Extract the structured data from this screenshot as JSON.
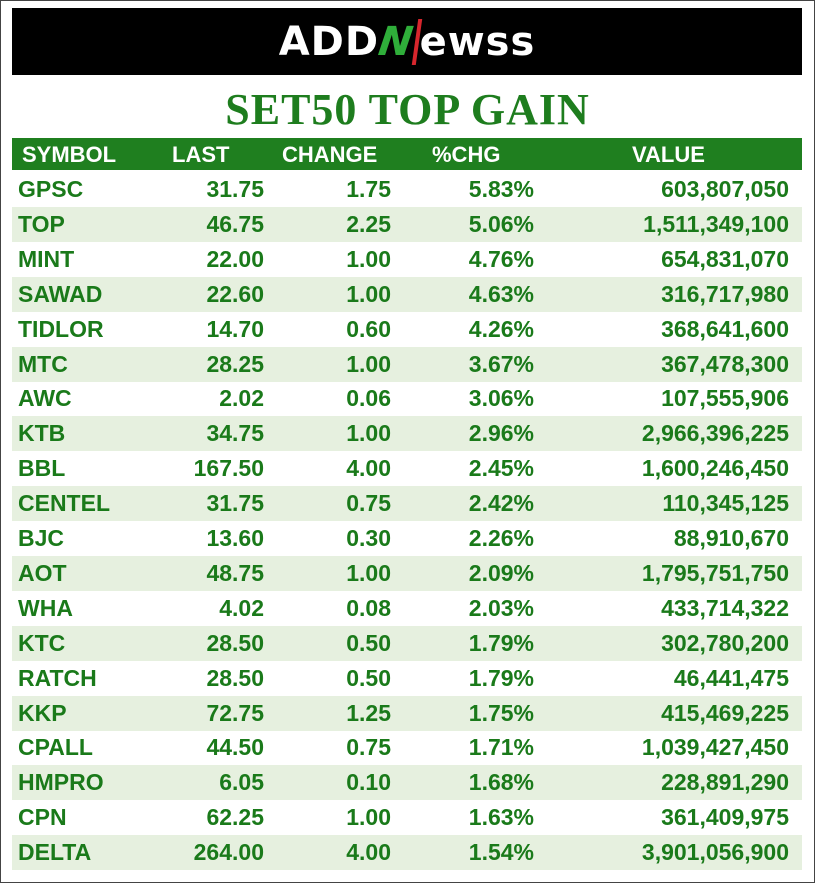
{
  "header": {
    "logo": {
      "part1": "ADD",
      "part2": "N",
      "part3": "ewss"
    },
    "title": "SET50 TOP GAIN"
  },
  "table": {
    "columns": [
      "SYMBOL",
      "LAST",
      "CHANGE",
      "%CHG",
      "VALUE"
    ],
    "rows": [
      [
        "GPSC",
        "31.75",
        "1.75",
        "5.83%",
        "603,807,050"
      ],
      [
        "TOP",
        "46.75",
        "2.25",
        "5.06%",
        "1,511,349,100"
      ],
      [
        "MINT",
        "22.00",
        "1.00",
        "4.76%",
        "654,831,070"
      ],
      [
        "SAWAD",
        "22.60",
        "1.00",
        "4.63%",
        "316,717,980"
      ],
      [
        "TIDLOR",
        "14.70",
        "0.60",
        "4.26%",
        "368,641,600"
      ],
      [
        "MTC",
        "28.25",
        "1.00",
        "3.67%",
        "367,478,300"
      ],
      [
        "AWC",
        "2.02",
        "0.06",
        "3.06%",
        "107,555,906"
      ],
      [
        "KTB",
        "34.75",
        "1.00",
        "2.96%",
        "2,966,396,225"
      ],
      [
        "BBL",
        "167.50",
        "4.00",
        "2.45%",
        "1,600,246,450"
      ],
      [
        "CENTEL",
        "31.75",
        "0.75",
        "2.42%",
        "110,345,125"
      ],
      [
        "BJC",
        "13.60",
        "0.30",
        "2.26%",
        "88,910,670"
      ],
      [
        "AOT",
        "48.75",
        "1.00",
        "2.09%",
        "1,795,751,750"
      ],
      [
        "WHA",
        "4.02",
        "0.08",
        "2.03%",
        "433,714,322"
      ],
      [
        "KTC",
        "28.50",
        "0.50",
        "1.79%",
        "302,780,200"
      ],
      [
        "RATCH",
        "28.50",
        "0.50",
        "1.79%",
        "46,441,475"
      ],
      [
        "KKP",
        "72.75",
        "1.25",
        "1.75%",
        "415,469,225"
      ],
      [
        "CPALL",
        "44.50",
        "0.75",
        "1.71%",
        "1,039,427,450"
      ],
      [
        "HMPRO",
        "6.05",
        "0.10",
        "1.68%",
        "228,891,290"
      ],
      [
        "CPN",
        "62.25",
        "1.00",
        "1.63%",
        "361,409,975"
      ],
      [
        "DELTA",
        "264.00",
        "4.00",
        "1.54%",
        "3,901,056,900"
      ]
    ]
  }
}
